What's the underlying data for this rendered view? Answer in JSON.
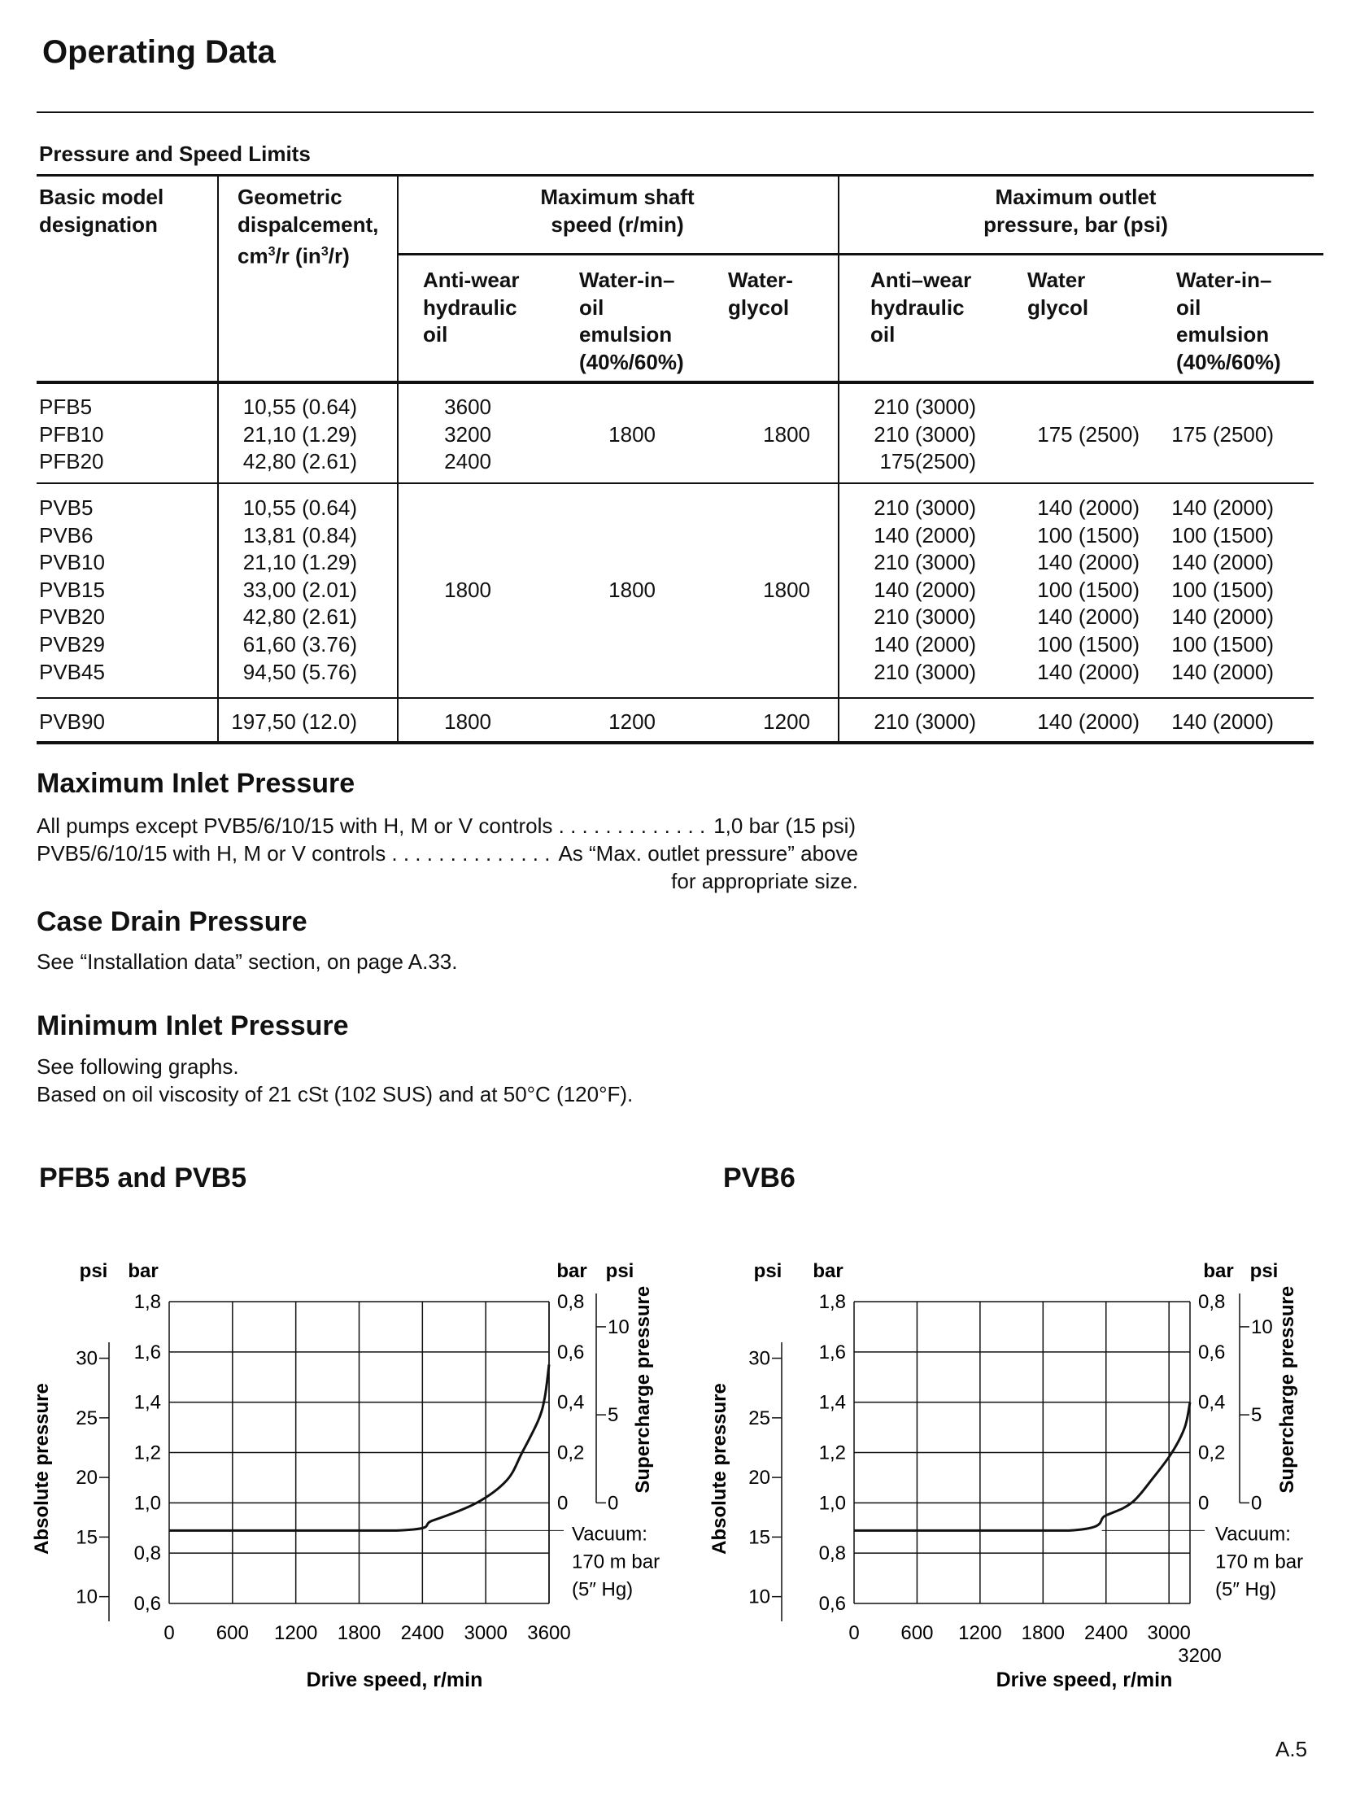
{
  "title": "Operating Data",
  "table": {
    "caption": "Pressure and Speed Limits",
    "headers": {
      "model": [
        "Basic model",
        "designation"
      ],
      "displacement": [
        "Geometric",
        "dispalcement,",
        "cm3/r (in3/r)"
      ],
      "speed_group": [
        "Maximum shaft",
        "speed (r/min)"
      ],
      "pressure_group": [
        "Maximum outlet",
        "pressure, bar (psi)"
      ],
      "speed_sub": [
        [
          "Anti-wear",
          "hydraulic",
          "oil"
        ],
        [
          "Water-in–",
          "oil",
          "emulsion",
          "(40%/60%)"
        ],
        [
          "Water-",
          "glycol"
        ]
      ],
      "pressure_sub": [
        [
          "Anti–wear",
          "hydraulic",
          "oil"
        ],
        [
          "Water",
          "glycol"
        ],
        [
          "Water-in–",
          "oil",
          "emulsion",
          "(40%/60%)"
        ]
      ]
    },
    "groups": [
      {
        "models": [
          "PFB5",
          "PFB10",
          "PFB20"
        ],
        "displacement": [
          "10,55 (0.64)",
          "21,10 (1.29)",
          "42,80 (2.61)"
        ],
        "speed_antiwear": [
          "3600",
          "3200",
          "2400"
        ],
        "speed_water_in_oil": "1800",
        "speed_water_glycol": "1800",
        "pressure_antiwear": [
          "210 (3000)",
          "210 (3000)",
          "175(2500)"
        ],
        "pressure_water_glycol": [
          "",
          "175 (2500)",
          ""
        ],
        "pressure_water_in_oil": [
          "",
          "175 (2500)",
          ""
        ]
      },
      {
        "models": [
          "PVB5",
          "PVB6",
          "PVB10",
          "PVB15",
          "PVB20",
          "PVB29",
          "PVB45"
        ],
        "displacement": [
          "10,55 (0.64)",
          "13,81 (0.84)",
          "21,10 (1.29)",
          "33,00 (2.01)",
          "42,80 (2.61)",
          "61,60 (3.76)",
          "94,50 (5.76)"
        ],
        "speed_antiwear": [
          "1800"
        ],
        "speed_water_in_oil": "1800",
        "speed_water_glycol": "1800",
        "pressure_antiwear": [
          "210 (3000)",
          "140 (2000)",
          "210 (3000)",
          "140 (2000)",
          "210 (3000)",
          "140 (2000)",
          "210 (3000)"
        ],
        "pressure_water_glycol": [
          "140 (2000)",
          "100 (1500)",
          "140 (2000)",
          "100 (1500)",
          "140 (2000)",
          "100 (1500)",
          "140 (2000)"
        ],
        "pressure_water_in_oil": [
          "140 (2000)",
          "100 (1500)",
          "140 (2000)",
          "100 (1500)",
          "140 (2000)",
          "100 (1500)",
          "140 (2000)"
        ]
      },
      {
        "models": [
          "PVB90"
        ],
        "displacement": [
          "197,50 (12.0)"
        ],
        "speed_antiwear": [
          "1800"
        ],
        "speed_water_in_oil": "1200",
        "speed_water_glycol": "1200",
        "pressure_antiwear": [
          "210 (3000)"
        ],
        "pressure_water_glycol": [
          "140 (2000)"
        ],
        "pressure_water_in_oil": [
          "140 (2000)"
        ]
      }
    ]
  },
  "max_inlet": {
    "heading": "Maximum Inlet Pressure",
    "line1_label": "All pumps except PVB5/6/10/15  with H, M or V controls . . . . . . . . . . . . .",
    "line1_value": "1,0 bar (15 psi)",
    "line2_label": "PVB5/6/10/15  with H, M or V controls  . . . . . . . . . . . . . .",
    "line2_value": "As “Max. outlet pressure” above",
    "line3": "for appropriate size."
  },
  "case_drain": {
    "heading": "Case Drain Pressure",
    "text": "See “Installation data” section, on page A.33."
  },
  "min_inlet": {
    "heading": "Minimum Inlet Pressure",
    "line1": "See following graphs.",
    "line2": "Based on oil viscosity of 21 cSt  (102 SUS) and at 50°C (120°F)."
  },
  "chart_data": [
    {
      "type": "line",
      "title": "PFB5 and PVB5",
      "xlabel": "Drive speed, r/min",
      "ylabel_left": "Absolute pressure",
      "ylabel_right": "Supercharge pressure",
      "unit_left_outer": "psi",
      "unit_left_inner": "bar",
      "unit_right_inner": "bar",
      "unit_right_outer": "psi",
      "xlim": [
        0,
        3600
      ],
      "ylim_bar_abs": [
        0.6,
        1.8
      ],
      "x_ticks": [
        "0",
        "600",
        "1200",
        "1800",
        "2400",
        "3000",
        "3600"
      ],
      "x_extra_tick": "",
      "y_ticks_bar_abs": [
        "1,8",
        "1,6",
        "1,4",
        "1,2",
        "1,0",
        "0,8",
        "0,6"
      ],
      "y_ticks_psi_abs": [
        "30",
        "25",
        "20",
        "15",
        "10"
      ],
      "y_ticks_bar_gauge": [
        "0,8",
        "0,6",
        "0,4",
        "0,2",
        "0"
      ],
      "y_ticks_psi_gauge": [
        "10",
        "5",
        "0"
      ],
      "annotation": [
        "Vacuum:",
        "170 m bar",
        "(5″ Hg)"
      ],
      "grid": true,
      "series": [
        {
          "x": [
            0,
            2150,
            2500,
            2914,
            3200,
            3345,
            3500,
            3560,
            3600
          ],
          "y": [
            0.89,
            0.89,
            0.93,
            1.0,
            1.09,
            1.2,
            1.33,
            1.42,
            1.55
          ]
        }
      ]
    },
    {
      "type": "line",
      "title": "PVB6",
      "xlabel": "Drive speed, r/min",
      "ylabel_left": "Absolute pressure",
      "ylabel_right": "Supercharge pressure",
      "unit_left_outer": "psi",
      "unit_left_inner": "bar",
      "unit_right_inner": "bar",
      "unit_right_outer": "psi",
      "xlim": [
        0,
        3200
      ],
      "ylim_bar_abs": [
        0.6,
        1.8
      ],
      "x_ticks": [
        "0",
        "600",
        "1200",
        "1800",
        "2400",
        "3000"
      ],
      "x_extra_tick": "3200",
      "y_ticks_bar_abs": [
        "1,8",
        "1,6",
        "1,4",
        "1,2",
        "1,0",
        "0,8",
        "0,6"
      ],
      "y_ticks_psi_abs": [
        "30",
        "25",
        "20",
        "15",
        "10"
      ],
      "y_ticks_bar_gauge": [
        "0,8",
        "0,6",
        "0,4",
        "0,2",
        "0"
      ],
      "y_ticks_psi_gauge": [
        "10",
        "5",
        "0"
      ],
      "annotation": [
        "Vacuum:",
        "170 m bar",
        "(5″ Hg)"
      ],
      "grid": true,
      "series": [
        {
          "x": [
            0,
            2050,
            2400,
            2643,
            2850,
            3028,
            3150,
            3200
          ],
          "y": [
            0.89,
            0.89,
            0.95,
            1.0,
            1.1,
            1.2,
            1.3,
            1.4
          ]
        }
      ]
    }
  ],
  "page_number": "A.5"
}
